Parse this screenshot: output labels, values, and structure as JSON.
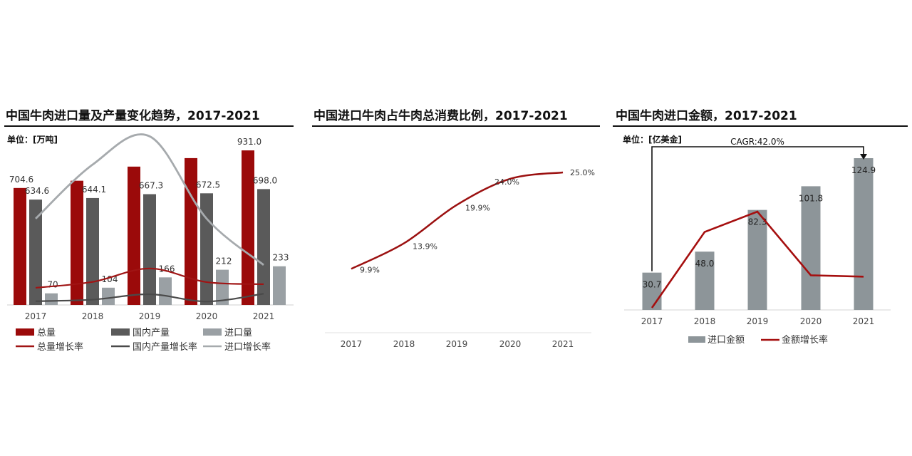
{
  "colors": {
    "total_bar": "#9b0a0a",
    "domestic_bar": "#5a5a5a",
    "import_bar": "#9aa0a4",
    "total_line": "#a01414",
    "domestic_line": "#4a4a4a",
    "import_line": "#a6aaad",
    "ratio_line": "#9b1010",
    "amount_bar": "#8d9599",
    "growth_line": "#a50e0e"
  },
  "chart_data": [
    {
      "type": "bar",
      "title": "中国牛肉进口量及产量变化趋势，2017-2021",
      "unit": "单位：[万吨]",
      "categories": [
        "2017",
        "2018",
        "2019",
        "2020",
        "2021"
      ],
      "series": [
        {
          "name": "总量",
          "values": [
            704.6,
            748.2,
            833.3,
            884.5,
            931.0
          ],
          "labels": [
            "704.6",
            "",
            "",
            "",
            "931.0"
          ]
        },
        {
          "name": "国内产量",
          "values": [
            634.6,
            644.1,
            667.3,
            672.5,
            698.0
          ],
          "labels": [
            "634.6",
            "644.1",
            "667.3",
            "672.5",
            "698.0"
          ]
        },
        {
          "name": "进口量",
          "values": [
            70,
            104,
            166,
            212,
            233
          ],
          "labels": [
            "70",
            "104",
            "166",
            "212",
            "233"
          ]
        }
      ],
      "line_series": [
        {
          "name": "总量增长率",
          "values": [
            3.9,
            6.2,
            11.4,
            6.1,
            5.3
          ]
        },
        {
          "name": "国内产量增长率",
          "values": [
            0.9,
            1.5,
            3.6,
            0.8,
            3.8
          ]
        },
        {
          "name": "进口增长率",
          "values": [
            28,
            49,
            60,
            28,
            10
          ]
        }
      ],
      "ylim": [
        0,
        1000
      ],
      "legend_position": "bottom"
    },
    {
      "type": "line",
      "title": "中国进口牛肉占牛肉总消费比例，2017-2021",
      "categories": [
        "2017",
        "2018",
        "2019",
        "2020",
        "2021"
      ],
      "series": [
        {
          "name": "",
          "values": [
            9.9,
            13.9,
            19.9,
            24.0,
            25.0
          ],
          "labels": [
            "9.9%",
            "13.9%",
            "19.9%",
            "24.0%",
            "25.0%"
          ]
        }
      ],
      "ylim": [
        0,
        30
      ]
    },
    {
      "type": "bar",
      "title": "中国牛肉进口金额，2017-2021",
      "unit": "单位：[亿美金]",
      "annotation": "CAGR:42.0%",
      "categories": [
        "2017",
        "2018",
        "2019",
        "2020",
        "2021"
      ],
      "series": [
        {
          "name": "进口金额",
          "values": [
            30.7,
            48.0,
            82.3,
            101.8,
            124.9
          ],
          "labels": [
            "30.7",
            "48.0",
            "82.3",
            "101.8",
            "124.9"
          ]
        }
      ],
      "line_series": [
        {
          "name": "金额增长率",
          "values": [
            0,
            56,
            71,
            24,
            23
          ]
        }
      ],
      "ylim": [
        0,
        130
      ],
      "legend_position": "bottom"
    }
  ]
}
